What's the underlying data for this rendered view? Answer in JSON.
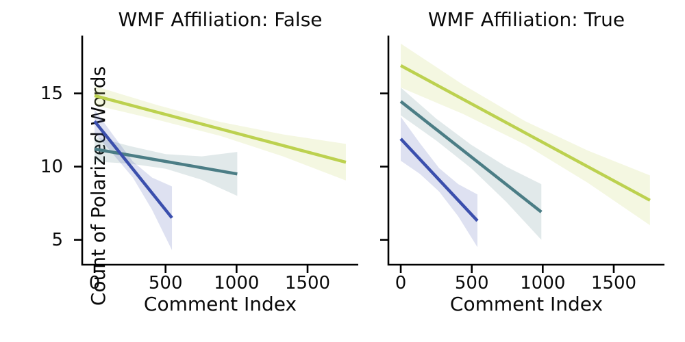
{
  "figure": {
    "ylabel": "Count of Polarized Words",
    "background_color": "#ffffff",
    "axis_color": "#000000",
    "text_color": "#0a0a0a"
  },
  "chart_data": [
    {
      "type": "line",
      "title": "WMF Affiliation: False",
      "xlabel": "Comment Index",
      "xlim": [
        -87,
        1857
      ],
      "ylim": [
        3.3,
        18.95
      ],
      "xticks": [
        0,
        500,
        1000,
        1500
      ],
      "yticks": [
        5,
        10,
        15
      ],
      "yticklabels": true,
      "grid": false,
      "legend": "none",
      "series": [
        {
          "name": "teal",
          "color": "#4b7d85",
          "line": [
            [
              0,
              11.2
            ],
            [
              1005,
              9.5
            ]
          ],
          "ci": [
            {
              "x": 0,
              "lo": 10.35,
              "hi": 12.05
            },
            {
              "x": 250,
              "lo": 10.2,
              "hi": 11.4
            },
            {
              "x": 502,
              "lo": 9.85,
              "hi": 10.85
            },
            {
              "x": 755,
              "lo": 9.1,
              "hi": 10.7
            },
            {
              "x": 1005,
              "lo": 8.0,
              "hi": 11.0
            }
          ]
        },
        {
          "name": "navy",
          "color": "#3b4fad",
          "line": [
            [
              0,
              13.1
            ],
            [
              545,
              6.5
            ]
          ],
          "ci": [
            {
              "x": 0,
              "lo": 12.3,
              "hi": 13.9
            },
            {
              "x": 135,
              "lo": 10.8,
              "hi": 12.1
            },
            {
              "x": 270,
              "lo": 9.25,
              "hi": 10.35
            },
            {
              "x": 405,
              "lo": 7.05,
              "hi": 9.25
            },
            {
              "x": 545,
              "lo": 4.3,
              "hi": 8.65
            }
          ]
        },
        {
          "name": "yellowgreen",
          "color": "#bcd14f",
          "line": [
            [
              0,
              14.85
            ],
            [
              1770,
              10.3
            ]
          ],
          "ci": [
            {
              "x": 0,
              "lo": 14.2,
              "hi": 15.5
            },
            {
              "x": 442,
              "lo": 13.2,
              "hi": 14.2
            },
            {
              "x": 885,
              "lo": 12.1,
              "hi": 13.05
            },
            {
              "x": 1327,
              "lo": 10.7,
              "hi": 12.2
            },
            {
              "x": 1770,
              "lo": 9.05,
              "hi": 11.55
            }
          ]
        }
      ]
    },
    {
      "type": "line",
      "title": "WMF Affiliation: True",
      "xlabel": "Comment Index",
      "xlim": [
        -87,
        1857
      ],
      "ylim": [
        3.3,
        18.95
      ],
      "xticks": [
        0,
        500,
        1000,
        1500
      ],
      "yticks": [
        5,
        10,
        15
      ],
      "yticklabels": false,
      "grid": false,
      "legend": "none",
      "series": [
        {
          "name": "teal",
          "color": "#4b7d85",
          "line": [
            [
              0,
              14.45
            ],
            [
              990,
              6.9
            ]
          ],
          "ci": [
            {
              "x": 0,
              "lo": 13.5,
              "hi": 15.4
            },
            {
              "x": 247,
              "lo": 11.8,
              "hi": 13.3
            },
            {
              "x": 495,
              "lo": 9.9,
              "hi": 11.5
            },
            {
              "x": 742,
              "lo": 7.6,
              "hi": 10.0
            },
            {
              "x": 990,
              "lo": 5.0,
              "hi": 8.8
            }
          ]
        },
        {
          "name": "navy",
          "color": "#3b4fad",
          "line": [
            [
              0,
              11.9
            ],
            [
              540,
              6.3
            ]
          ],
          "ci": [
            {
              "x": 0,
              "lo": 10.4,
              "hi": 13.4
            },
            {
              "x": 135,
              "lo": 9.5,
              "hi": 11.6
            },
            {
              "x": 270,
              "lo": 8.3,
              "hi": 9.9
            },
            {
              "x": 405,
              "lo": 6.6,
              "hi": 8.8
            },
            {
              "x": 540,
              "lo": 4.5,
              "hi": 8.1
            }
          ]
        },
        {
          "name": "yellowgreen",
          "color": "#bcd14f",
          "line": [
            [
              0,
              16.9
            ],
            [
              1755,
              7.7
            ]
          ],
          "ci": [
            {
              "x": 0,
              "lo": 15.4,
              "hi": 18.4
            },
            {
              "x": 438,
              "lo": 13.6,
              "hi": 15.6
            },
            {
              "x": 877,
              "lo": 11.5,
              "hi": 13.1
            },
            {
              "x": 1316,
              "lo": 8.9,
              "hi": 11.1
            },
            {
              "x": 1755,
              "lo": 6.0,
              "hi": 9.4
            }
          ]
        }
      ]
    }
  ]
}
